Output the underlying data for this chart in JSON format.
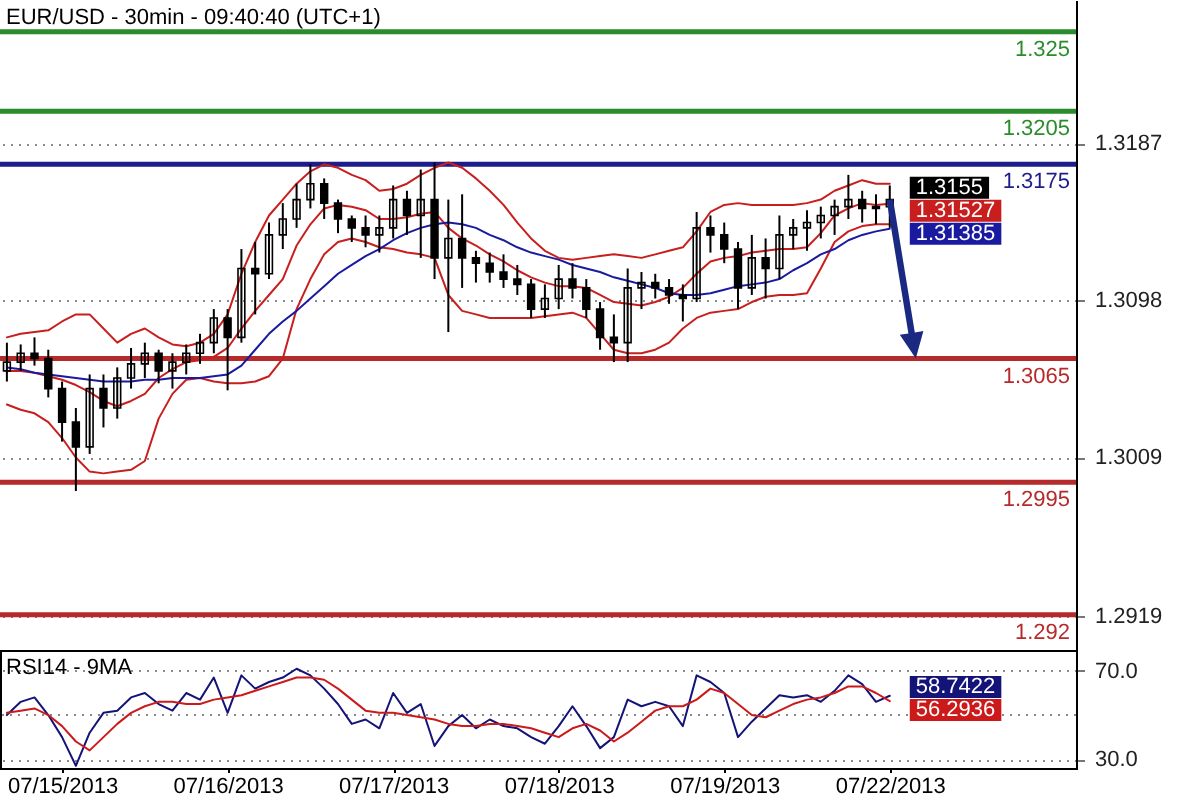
{
  "chart_data": [
    {
      "type": "candlestick",
      "title": "EUR/USD - 30min - 09:40:40 (UTC+1)",
      "color": "#000000",
      "categories": [
        null,
        null,
        null,
        null,
        "07/15/2013",
        null,
        null,
        null,
        null,
        null,
        null,
        null,
        null,
        null,
        null,
        null,
        "07/16/2013",
        null,
        null,
        null,
        null,
        null,
        null,
        null,
        null,
        null,
        null,
        null,
        "07/17/2013",
        null,
        null,
        null,
        null,
        null,
        null,
        null,
        null,
        null,
        null,
        null,
        "07/18/2013",
        null,
        null,
        null,
        null,
        null,
        null,
        null,
        null,
        null,
        null,
        null,
        "07/19/2013",
        null,
        null,
        null,
        null,
        null,
        null,
        null,
        null,
        null,
        null,
        null,
        "07/22/2013",
        null,
        null,
        null,
        null,
        null,
        null,
        null,
        null,
        null,
        null,
        null,
        null,
        null
      ],
      "ohlc": [
        [
          1.3058,
          1.3074,
          1.3052,
          1.3063
        ],
        [
          1.3063,
          1.3073,
          1.3058,
          1.3068
        ],
        [
          1.3068,
          1.3077,
          1.3061,
          1.3065
        ],
        [
          1.3065,
          1.307,
          1.3043,
          1.3048
        ],
        [
          1.3048,
          1.3052,
          1.3018,
          1.3029
        ],
        [
          1.3029,
          1.3037,
          1.299,
          1.3015
        ],
        [
          1.3015,
          1.3056,
          1.3011,
          1.3048
        ],
        [
          1.3048,
          1.3056,
          1.3026,
          1.3037
        ],
        [
          1.3037,
          1.306,
          1.3031,
          1.3054
        ],
        [
          1.3054,
          1.3071,
          1.3048,
          1.3062
        ],
        [
          1.3062,
          1.3074,
          1.3054,
          1.3068
        ],
        [
          1.3068,
          1.307,
          1.3051,
          1.3058
        ],
        [
          1.3058,
          1.3068,
          1.3048,
          1.3063
        ],
        [
          1.3063,
          1.3073,
          1.3056,
          1.3068
        ],
        [
          1.3068,
          1.3079,
          1.3062,
          1.3074
        ],
        [
          1.3074,
          1.3093,
          1.3068,
          1.3088
        ],
        [
          1.3088,
          1.3093,
          1.3047,
          1.3077
        ],
        [
          1.3077,
          1.3127,
          1.3074,
          1.3116
        ],
        [
          1.3116,
          1.3131,
          1.309,
          1.3113
        ],
        [
          1.3113,
          1.3142,
          1.311,
          1.3135
        ],
        [
          1.3135,
          1.3153,
          1.3127,
          1.3144
        ],
        [
          1.3144,
          1.3164,
          1.3139,
          1.3155
        ],
        [
          1.3155,
          1.3175,
          1.315,
          1.3164
        ],
        [
          1.3164,
          1.3167,
          1.3144,
          1.3153
        ],
        [
          1.3153,
          1.3155,
          1.3136,
          1.3144
        ],
        [
          1.3144,
          1.3146,
          1.3131,
          1.3139
        ],
        [
          1.3139,
          1.3146,
          1.3128,
          1.3135
        ],
        [
          1.3135,
          1.3146,
          1.3125,
          1.3139
        ],
        [
          1.3139,
          1.3163,
          1.3133,
          1.3155
        ],
        [
          1.3155,
          1.316,
          1.3135,
          1.3146
        ],
        [
          1.3146,
          1.3172,
          1.3122,
          1.3155
        ],
        [
          1.3155,
          1.3176,
          1.311,
          1.3122
        ],
        [
          1.3122,
          1.3155,
          1.308,
          1.3133
        ],
        [
          1.3133,
          1.3158,
          1.3105,
          1.3122
        ],
        [
          1.3122,
          1.3126,
          1.3108,
          1.3119
        ],
        [
          1.3119,
          1.3125,
          1.3108,
          1.3114
        ],
        [
          1.3114,
          1.3124,
          1.3105,
          1.311
        ],
        [
          1.311,
          1.3118,
          1.3101,
          1.3107
        ],
        [
          1.3107,
          1.311,
          1.3088,
          1.3093
        ],
        [
          1.3093,
          1.3107,
          1.3088,
          1.3099
        ],
        [
          1.3099,
          1.3118,
          1.3093,
          1.311
        ],
        [
          1.311,
          1.3119,
          1.3099,
          1.3105
        ],
        [
          1.3105,
          1.311,
          1.3088,
          1.3093
        ],
        [
          1.3093,
          1.3097,
          1.307,
          1.3077
        ],
        [
          1.3077,
          1.309,
          1.3063,
          1.3074
        ],
        [
          1.3074,
          1.3116,
          1.3063,
          1.3105
        ],
        [
          1.3105,
          1.3114,
          1.3093,
          1.3108
        ],
        [
          1.3108,
          1.3113,
          1.3099,
          1.3105
        ],
        [
          1.3105,
          1.311,
          1.3096,
          1.3101
        ],
        [
          1.3101,
          1.3107,
          1.3086,
          1.3099
        ],
        [
          1.3099,
          1.3148,
          1.3097,
          1.3139
        ],
        [
          1.3139,
          1.3146,
          1.3125,
          1.3135
        ],
        [
          1.3135,
          1.3142,
          1.3119,
          1.3127
        ],
        [
          1.3127,
          1.3131,
          1.3093,
          1.3105
        ],
        [
          1.3105,
          1.3135,
          1.3101,
          1.3122
        ],
        [
          1.3122,
          1.3133,
          1.3099,
          1.3116
        ],
        [
          1.3116,
          1.3146,
          1.311,
          1.3135
        ],
        [
          1.3135,
          1.3144,
          1.3127,
          1.3139
        ],
        [
          1.3139,
          1.3149,
          1.3126,
          1.3142
        ],
        [
          1.3142,
          1.3151,
          1.3133,
          1.3146
        ],
        [
          1.3146,
          1.3155,
          1.3135,
          1.3151
        ],
        [
          1.3151,
          1.3169,
          1.3144,
          1.3155
        ],
        [
          1.3155,
          1.316,
          1.3142,
          1.315
        ],
        [
          1.315,
          1.3158,
          1.3141,
          1.3151
        ],
        [
          1.3151,
          1.3163,
          1.3139,
          1.3155
        ],
        null,
        null,
        null,
        null,
        null,
        null,
        null,
        null,
        null,
        null,
        null,
        null,
        null
      ],
      "series": [
        {
          "type": "line",
          "color": "#c81e1e",
          "values": [
            1.3077,
            1.3079,
            1.308,
            1.3081,
            1.3086,
            1.309,
            1.309,
            1.3082,
            1.3074,
            1.3079,
            1.3082,
            1.3077,
            1.3073,
            1.3072,
            1.3074,
            1.3079,
            1.309,
            1.3113,
            1.3131,
            1.3146,
            1.3155,
            1.3164,
            1.3171,
            1.3175,
            1.3173,
            1.3169,
            1.3166,
            1.316,
            1.3161,
            1.3164,
            1.3169,
            1.3173,
            1.3176,
            1.3173,
            1.3167,
            1.316,
            1.3152,
            1.3142,
            1.3133,
            1.3126,
            1.3122,
            1.3121,
            1.3122,
            1.3123,
            1.3124,
            1.3123,
            1.3122,
            1.3124,
            1.3126,
            1.3128,
            1.3137,
            1.3148,
            1.3152,
            1.3153,
            1.3152,
            1.3152,
            1.3152,
            1.3152,
            1.3153,
            1.3155,
            1.316,
            1.3163,
            1.3166,
            1.3164,
            1.3164,
            null,
            null,
            null,
            null,
            null,
            null,
            null,
            null,
            null,
            null,
            null,
            null,
            null
          ]
        },
        {
          "type": "line",
          "color": "#c81e1e",
          "values": [
            1.3058,
            1.3058,
            1.3057,
            1.3055,
            1.3053,
            1.305,
            1.3046,
            1.3041,
            1.3038,
            1.3041,
            1.3045,
            1.3054,
            1.3059,
            1.3063,
            1.3064,
            1.3066,
            1.3071,
            1.3082,
            1.3092,
            1.3101,
            1.311,
            1.3129,
            1.3141,
            1.315,
            1.3152,
            1.3151,
            1.3149,
            1.3144,
            1.3144,
            1.3145,
            1.3147,
            1.3148,
            1.3139,
            1.3133,
            1.3129,
            1.3124,
            1.312,
            1.3115,
            1.3111,
            1.3108,
            1.3106,
            1.3106,
            1.3105,
            1.3101,
            1.3097,
            1.3096,
            1.3095,
            1.3097,
            1.31,
            1.3105,
            1.3113,
            1.312,
            1.3122,
            1.3123,
            1.3125,
            1.3126,
            1.3127,
            1.3127,
            1.3128,
            1.3136,
            1.3146,
            1.315,
            1.3153,
            1.3152,
            1.31527,
            null,
            null,
            null,
            null,
            null,
            null,
            null,
            null,
            null,
            null,
            null,
            null,
            null
          ]
        },
        {
          "type": "line",
          "color": "#c81e1e",
          "values": [
            1.3039,
            1.3036,
            1.3034,
            1.3029,
            1.302,
            1.3009,
            1.3001,
            1.3,
            1.3001,
            1.3002,
            1.3007,
            1.3031,
            1.3045,
            1.3053,
            1.3054,
            1.3052,
            1.3051,
            1.3051,
            1.3052,
            1.3055,
            1.3065,
            1.3093,
            1.311,
            1.3124,
            1.3131,
            1.3133,
            1.3131,
            1.3128,
            1.3127,
            1.3125,
            1.3124,
            1.3122,
            1.3101,
            1.3092,
            1.309,
            1.3088,
            1.3088,
            1.3088,
            1.3088,
            1.3089,
            1.309,
            1.3091,
            1.3088,
            1.3079,
            1.307,
            1.3068,
            1.3068,
            1.307,
            1.3074,
            1.3082,
            1.3088,
            1.3091,
            1.3092,
            1.3093,
            1.3097,
            1.31,
            1.3101,
            1.3101,
            1.3102,
            1.3116,
            1.3131,
            1.3137,
            1.314,
            1.3141,
            1.3141,
            null,
            null,
            null,
            null,
            null,
            null,
            null,
            null,
            null,
            null,
            null,
            null,
            null
          ]
        },
        {
          "type": "line",
          "color": "#1a1aa0",
          "values": [
            1.306,
            1.3059,
            1.3057,
            1.3056,
            1.3055,
            1.3054,
            1.3053,
            1.3052,
            1.3052,
            1.3052,
            1.3053,
            1.3053,
            1.3054,
            1.3054,
            1.3054,
            1.3055,
            1.3056,
            1.3061,
            1.307,
            1.3079,
            1.3086,
            1.3092,
            1.3099,
            1.3106,
            1.3113,
            1.3118,
            1.3123,
            1.3127,
            1.3132,
            1.3136,
            1.3139,
            1.3141,
            1.3142,
            1.3141,
            1.3139,
            1.3135,
            1.3132,
            1.3128,
            1.3125,
            1.3123,
            1.3121,
            1.3118,
            1.3116,
            1.3114,
            1.3111,
            1.3109,
            1.3107,
            1.3105,
            1.3102,
            1.3101,
            1.3101,
            1.3102,
            1.3104,
            1.3106,
            1.3107,
            1.3108,
            1.311,
            1.3115,
            1.3119,
            1.3124,
            1.3127,
            1.3132,
            1.3135,
            1.3137,
            1.31385,
            null,
            null,
            null,
            null,
            null,
            null,
            null,
            null,
            null,
            null,
            null,
            null,
            null
          ]
        }
      ],
      "ylim": [
        1.29,
        1.3268
      ],
      "yticks": [
        1.2919,
        1.3009,
        1.3098,
        1.3187
      ],
      "grid": "y",
      "tick_labels": "y",
      "ref_lines": [
        {
          "axis": "y",
          "value": 1.325,
          "label": "1.325",
          "color": "#2a8c2a"
        },
        {
          "axis": "y",
          "value": 1.3205,
          "label": "1.3205",
          "color": "#2a8c2a"
        },
        {
          "axis": "y",
          "value": 1.3175,
          "label": "1.3175",
          "color": "#1c1c8a"
        },
        {
          "axis": "y",
          "value": 1.3065,
          "label": "1.3065",
          "color": "#b52a2a"
        },
        {
          "axis": "y",
          "value": 1.2995,
          "label": "1.2995",
          "color": "#b52a2a"
        },
        {
          "axis": "y",
          "value": 1.292,
          "label": "1.292",
          "color": "#b52a2a"
        }
      ],
      "annotations": [
        {
          "text": "1.3155",
          "x": "07/22/2013",
          "y": 1.3155
        },
        {
          "text": "1.31527",
          "x": "07/22/2013",
          "y": 1.31527
        },
        {
          "text": "1.31385",
          "x": "07/22/2013",
          "y": 1.31385
        }
      ]
    },
    {
      "type": "line",
      "title": "RSI14 - 9MA",
      "categories": [
        null,
        null,
        null,
        null,
        "07/15/2013",
        null,
        null,
        null,
        null,
        null,
        null,
        null,
        null,
        null,
        null,
        null,
        "07/16/2013",
        null,
        null,
        null,
        null,
        null,
        null,
        null,
        null,
        null,
        null,
        null,
        "07/17/2013",
        null,
        null,
        null,
        null,
        null,
        null,
        null,
        null,
        null,
        null,
        null,
        "07/18/2013",
        null,
        null,
        null,
        null,
        null,
        null,
        null,
        null,
        null,
        null,
        null,
        "07/19/2013",
        null,
        null,
        null,
        null,
        null,
        null,
        null,
        null,
        null,
        null,
        null,
        "07/22/2013",
        null,
        null,
        null,
        null,
        null,
        null,
        null,
        null,
        null,
        null,
        null,
        null,
        null
      ],
      "series": [
        {
          "color": "#141478",
          "values": [
            50,
            56,
            58,
            50,
            40,
            27,
            42,
            51,
            52,
            58,
            60,
            55,
            52,
            60,
            57,
            67,
            51,
            68,
            62,
            65,
            67,
            71,
            68,
            62,
            55,
            46,
            48,
            44,
            60,
            51,
            55,
            36,
            45,
            50,
            44,
            48,
            45,
            44,
            40,
            37,
            45,
            54,
            45,
            35,
            40,
            57,
            54,
            56,
            54,
            45,
            68,
            65,
            60,
            40,
            47,
            53,
            59,
            58,
            59,
            56,
            61,
            68,
            64,
            56,
            58.7422,
            null,
            null,
            null,
            null,
            null,
            null,
            null,
            null,
            null,
            null,
            null,
            null,
            null
          ]
        },
        {
          "color": "#cc1a1a",
          "values": [
            51,
            52,
            53,
            50,
            45,
            38,
            34,
            40,
            46,
            51,
            54,
            56,
            56,
            55,
            55,
            57,
            58,
            59,
            61,
            63,
            65,
            67,
            67,
            66,
            62,
            57,
            52,
            51,
            51,
            50,
            49,
            48,
            46,
            45,
            45,
            46,
            46,
            45,
            44,
            42,
            40,
            44,
            46,
            43,
            38,
            42,
            47,
            52,
            54,
            54,
            57,
            62,
            60,
            55,
            50,
            49,
            52,
            55,
            57,
            58,
            60,
            63,
            63,
            60,
            56.2936,
            null,
            null,
            null,
            null,
            null,
            null,
            null,
            null,
            null,
            null,
            null,
            null,
            null
          ]
        }
      ],
      "ylim": [
        26,
        79.5
      ],
      "yticks": [
        {
          "value": 30,
          "label": "30.0"
        },
        {
          "value": 70,
          "label": "70.0"
        }
      ],
      "grid": "y",
      "ref_lines": [
        {
          "axis": "y",
          "value": 50,
          "color": "#8a8a8a",
          "line_style": "dotted"
        }
      ],
      "annotations": [
        {
          "text": "58.7422",
          "x": "07/22/2013",
          "y": 58.7422
        },
        {
          "text": "56.2936",
          "x": "07/22/2013",
          "y": 56.2936
        }
      ]
    }
  ]
}
